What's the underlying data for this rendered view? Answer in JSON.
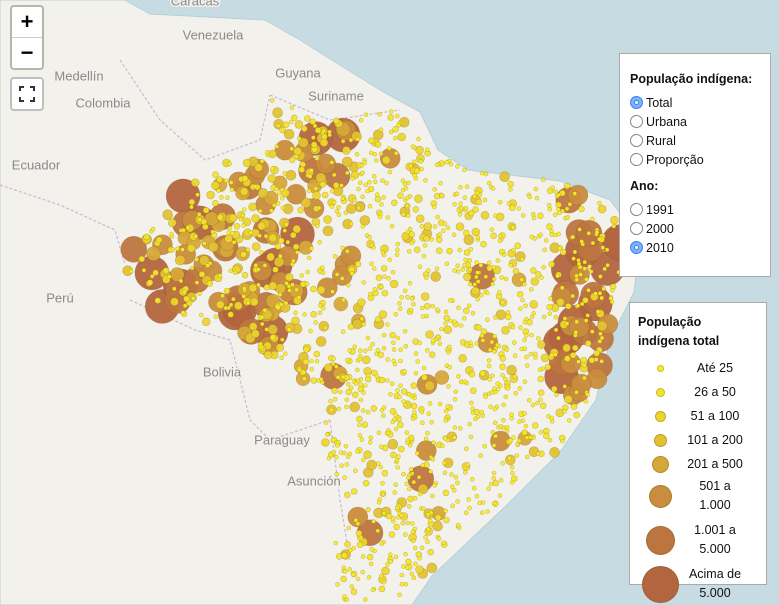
{
  "map_labels": [
    "Caracas",
    "Venezuela",
    "Medellín",
    "Colombia",
    "Guyana",
    "Suriname",
    "Ecuador",
    "Perú",
    "Bolivia",
    "Paraguay",
    "Asunción"
  ],
  "zoom_controls": {
    "zoom_in": "+",
    "zoom_out": "−"
  },
  "layer_control": {
    "title": "População indígena:",
    "options": [
      "Total",
      "Urbana",
      "Rural",
      "Proporção"
    ],
    "selected": 0,
    "year_title": "Ano:",
    "years": [
      "1991",
      "2000",
      "2010"
    ],
    "year_selected": 2
  },
  "legend": {
    "title": "População indígena total",
    "items": [
      "Até 25",
      "26 a 50",
      "51 a 100",
      "101 a 200",
      "201 a 500",
      "501 a 1.000",
      "1.001 a 5.000",
      "Acima de 5.000"
    ]
  }
}
